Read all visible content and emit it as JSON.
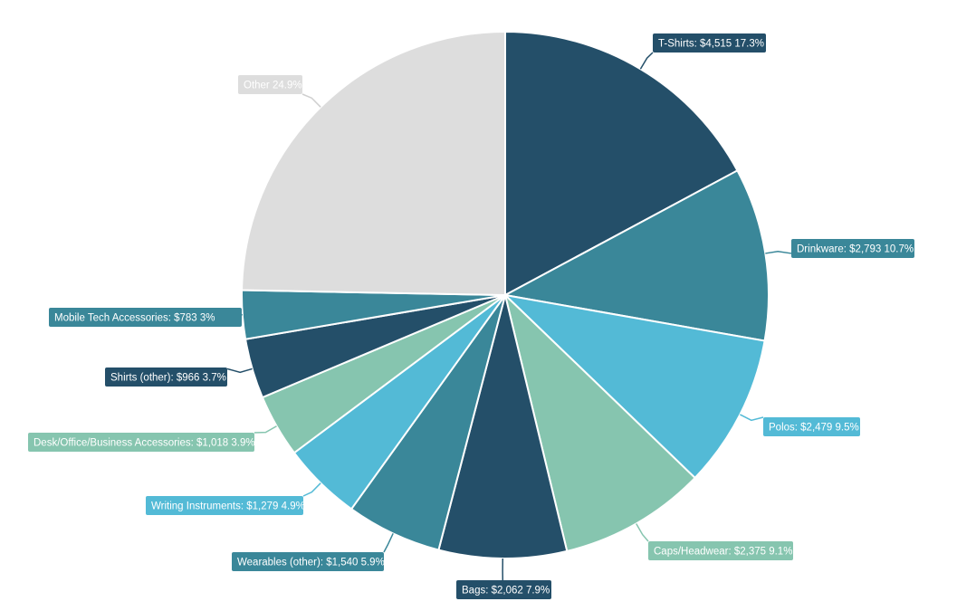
{
  "chart_data": {
    "type": "pie",
    "title": "",
    "start_angle_deg": 0,
    "direction": "clockwise",
    "slices": [
      {
        "label": "T-Shirts",
        "value_text": "$4,515",
        "percent": 17.3,
        "color": "#244f69",
        "text_color": "#ffffff"
      },
      {
        "label": "Drinkware",
        "value_text": "$2,793",
        "percent": 10.7,
        "color": "#3a8799",
        "text_color": "#ffffff"
      },
      {
        "label": "Polos",
        "value_text": "$2,479",
        "percent": 9.5,
        "color": "#53bad6",
        "text_color": "#ffffff"
      },
      {
        "label": "Caps/Headwear",
        "value_text": "$2,375",
        "percent": 9.1,
        "color": "#86c5af",
        "text_color": "#ffffff"
      },
      {
        "label": "Bags",
        "value_text": "$2,062",
        "percent": 7.9,
        "color": "#244f69",
        "text_color": "#ffffff"
      },
      {
        "label": "Wearables (other)",
        "value_text": "$1,540",
        "percent": 5.9,
        "color": "#3a8799",
        "text_color": "#ffffff"
      },
      {
        "label": "Writing Instruments",
        "value_text": "$1,279",
        "percent": 4.9,
        "color": "#53bad6",
        "text_color": "#ffffff"
      },
      {
        "label": "Desk/Office/Business Accessories",
        "value_text": "$1,018",
        "percent": 3.9,
        "color": "#86c5af",
        "text_color": "#ffffff"
      },
      {
        "label": "Shirts (other)",
        "value_text": "$966",
        "percent": 3.7,
        "color": "#244f69",
        "text_color": "#ffffff"
      },
      {
        "label": "Mobile Tech Accessories",
        "value_text": "$783",
        "percent": 3,
        "color": "#3a8799",
        "text_color": "#ffffff"
      },
      {
        "label": "Other",
        "value_text": "",
        "percent": 24.9,
        "color": "#dddddd",
        "text_color": "#ffffff"
      }
    ],
    "labels": [
      "T-Shirts: $4,515 17.3%",
      "Drinkware: $2,793 10.7%",
      "Polos: $2,479 9.5%",
      "Caps/Headwear: $2,375 9.1%",
      "Bags: $2,062 7.9%",
      "Wearables (other): $1,540 5.9%",
      "Writing Instruments: $1,279 4.9%",
      "Desk/Office/Business Accessories: $1,018 3.9%",
      "Shirts (other): $966 3.7%",
      "Mobile Tech Accessories: $783 3%",
      "Other 24.9%"
    ]
  }
}
